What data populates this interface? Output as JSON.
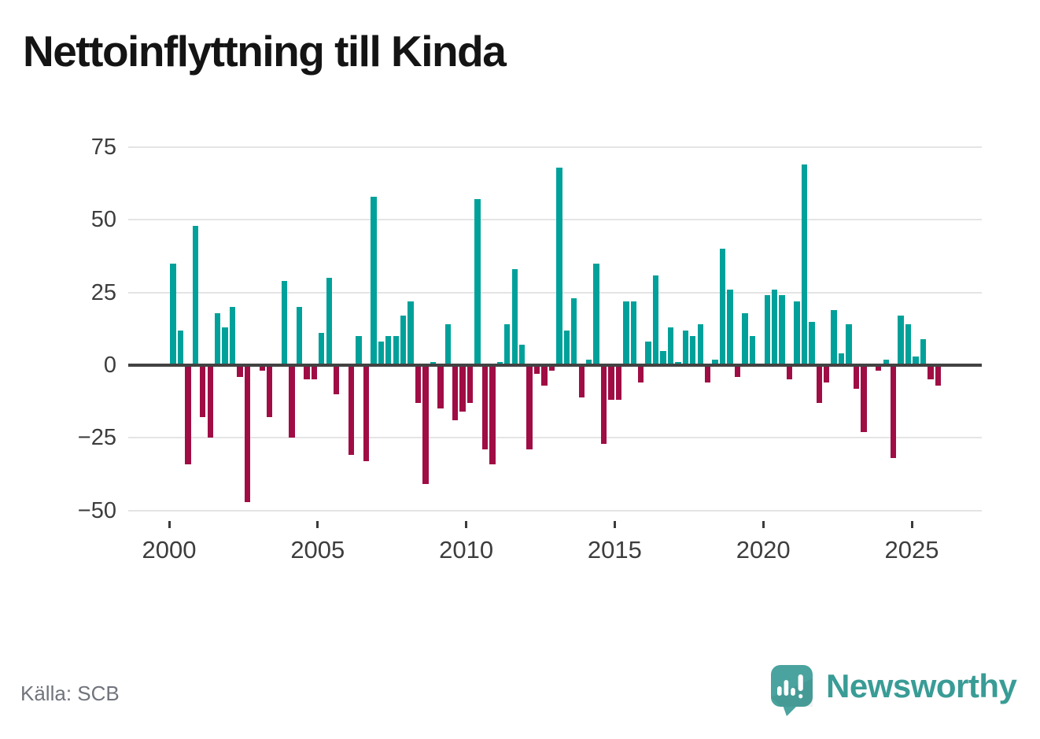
{
  "title": "Nettoinflyttning till Kinda",
  "source": "Källa: SCB",
  "branding": {
    "name": "Newsworthy",
    "icon": "newsworthy-speech-bubble-chart-icon"
  },
  "colors": {
    "positive": "#00a19a",
    "negative": "#a00d45",
    "axis": "#424242",
    "gridline": "#e4e4e4",
    "tick_text": "#3d3d3d",
    "title_text": "#141414",
    "source_text": "#70747c",
    "brand_teal": "#399c96",
    "logo_fill": "#4aa39e"
  },
  "chart_data": {
    "type": "bar",
    "title": "Nettoinflyttning till Kinda",
    "xlabel": "",
    "ylabel": "",
    "legend": null,
    "grid": true,
    "ylim": [
      -55,
      80
    ],
    "y_ticks": [
      75,
      50,
      25,
      0,
      -25,
      -50
    ],
    "x_ticks": [
      2000,
      2005,
      2010,
      2015,
      2020,
      2025
    ],
    "frequency": "quarterly",
    "positive_color": "#00a19a",
    "negative_color": "#a00d45",
    "categories": [
      "2000Q1",
      "2000Q2",
      "2000Q3",
      "2000Q4",
      "2001Q1",
      "2001Q2",
      "2001Q3",
      "2001Q4",
      "2002Q1",
      "2002Q2",
      "2002Q3",
      "2002Q4",
      "2003Q1",
      "2003Q2",
      "2003Q3",
      "2003Q4",
      "2004Q1",
      "2004Q2",
      "2004Q3",
      "2004Q4",
      "2005Q1",
      "2005Q2",
      "2005Q3",
      "2005Q4",
      "2006Q1",
      "2006Q2",
      "2006Q3",
      "2006Q4",
      "2007Q1",
      "2007Q2",
      "2007Q3",
      "2007Q4",
      "2008Q1",
      "2008Q2",
      "2008Q3",
      "2008Q4",
      "2009Q1",
      "2009Q2",
      "2009Q3",
      "2009Q4",
      "2010Q1",
      "2010Q2",
      "2010Q3",
      "2010Q4",
      "2011Q1",
      "2011Q2",
      "2011Q3",
      "2011Q4",
      "2012Q1",
      "2012Q2",
      "2012Q3",
      "2012Q4",
      "2013Q1",
      "2013Q2",
      "2013Q3",
      "2013Q4",
      "2014Q1",
      "2014Q2",
      "2014Q3",
      "2014Q4",
      "2015Q1",
      "2015Q2",
      "2015Q3",
      "2015Q4",
      "2016Q1",
      "2016Q2",
      "2016Q3",
      "2016Q4",
      "2017Q1",
      "2017Q2",
      "2017Q3",
      "2017Q4",
      "2018Q1",
      "2018Q2",
      "2018Q3",
      "2018Q4",
      "2019Q1",
      "2019Q2",
      "2019Q3",
      "2019Q4",
      "2020Q1",
      "2020Q2",
      "2020Q3",
      "2020Q4",
      "2021Q1",
      "2021Q2",
      "2021Q3",
      "2021Q4",
      "2022Q1",
      "2022Q2",
      "2022Q3",
      "2022Q4",
      "2023Q1",
      "2023Q2",
      "2023Q3",
      "2023Q4",
      "2024Q1",
      "2024Q2",
      "2024Q3",
      "2024Q4",
      "2025Q1",
      "2025Q2",
      "2025Q3",
      "2025Q4"
    ],
    "values": [
      35,
      12,
      -34,
      48,
      -18,
      -25,
      18,
      13,
      20,
      -4,
      -47,
      0,
      -2,
      -18,
      0,
      29,
      -25,
      20,
      -5,
      -5,
      11,
      30,
      -10,
      0,
      -31,
      10,
      -33,
      58,
      8,
      10,
      10,
      17,
      22,
      -13,
      -41,
      1,
      -15,
      14,
      -19,
      -16,
      -13,
      57,
      -29,
      -34,
      1,
      14,
      33,
      7,
      -29,
      -3,
      -7,
      -2,
      68,
      12,
      23,
      -11,
      2,
      35,
      -27,
      -12,
      -12,
      22,
      22,
      -6,
      8,
      31,
      5,
      13,
      1,
      12,
      10,
      14,
      -6,
      2,
      40,
      26,
      -4,
      18,
      10,
      0,
      24,
      26,
      24,
      -5,
      22,
      69,
      15,
      -13,
      -6,
      19,
      4,
      14,
      -8,
      -23,
      0,
      -2,
      2,
      -32,
      17,
      14,
      3,
      9,
      -5,
      -7
    ]
  }
}
